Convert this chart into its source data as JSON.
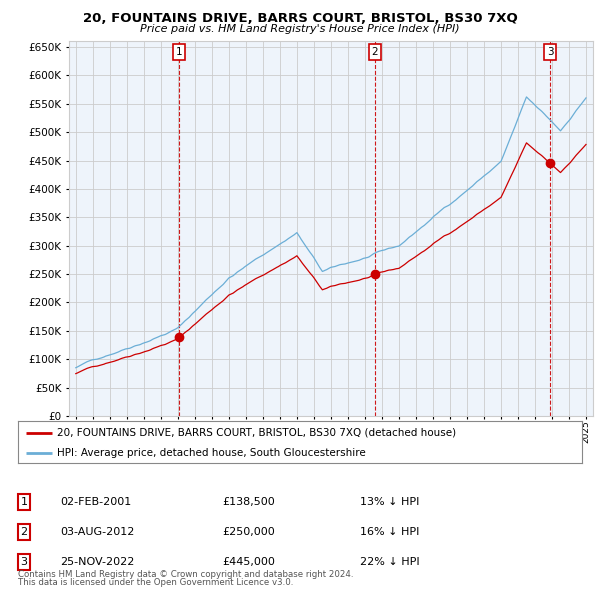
{
  "title": "20, FOUNTAINS DRIVE, BARRS COURT, BRISTOL, BS30 7XQ",
  "subtitle": "Price paid vs. HM Land Registry's House Price Index (HPI)",
  "legend_line1": "20, FOUNTAINS DRIVE, BARRS COURT, BRISTOL, BS30 7XQ (detached house)",
  "legend_line2": "HPI: Average price, detached house, South Gloucestershire",
  "footer_line1": "Contains HM Land Registry data © Crown copyright and database right 2024.",
  "footer_line2": "This data is licensed under the Open Government Licence v3.0.",
  "table_entries": [
    {
      "num": "1",
      "date": "02-FEB-2001",
      "price": "£138,500",
      "pct": "13% ↓ HPI"
    },
    {
      "num": "2",
      "date": "03-AUG-2012",
      "price": "£250,000",
      "pct": "16% ↓ HPI"
    },
    {
      "num": "3",
      "date": "25-NOV-2022",
      "price": "£445,000",
      "pct": "22% ↓ HPI"
    }
  ],
  "sale_dates": [
    2001.085,
    2012.587,
    2022.899
  ],
  "sale_prices": [
    138500,
    250000,
    445000
  ],
  "sale_labels": [
    "1",
    "2",
    "3"
  ],
  "hpi_color": "#6BAED6",
  "price_color": "#CC0000",
  "vline_color": "#CC0000",
  "grid_color": "#CCCCCC",
  "bg_chart": "#EEF4FB",
  "background_color": "#FFFFFF",
  "ylim": [
    0,
    660000
  ],
  "yticks": [
    0,
    50000,
    100000,
    150000,
    200000,
    250000,
    300000,
    350000,
    400000,
    450000,
    500000,
    550000,
    600000,
    650000
  ],
  "xlim": [
    1994.6,
    2025.4
  ],
  "xticks": [
    1995,
    1996,
    1997,
    1998,
    1999,
    2000,
    2001,
    2002,
    2003,
    2004,
    2005,
    2006,
    2007,
    2008,
    2009,
    2010,
    2011,
    2012,
    2013,
    2014,
    2015,
    2016,
    2017,
    2018,
    2019,
    2020,
    2021,
    2022,
    2023,
    2024,
    2025
  ]
}
